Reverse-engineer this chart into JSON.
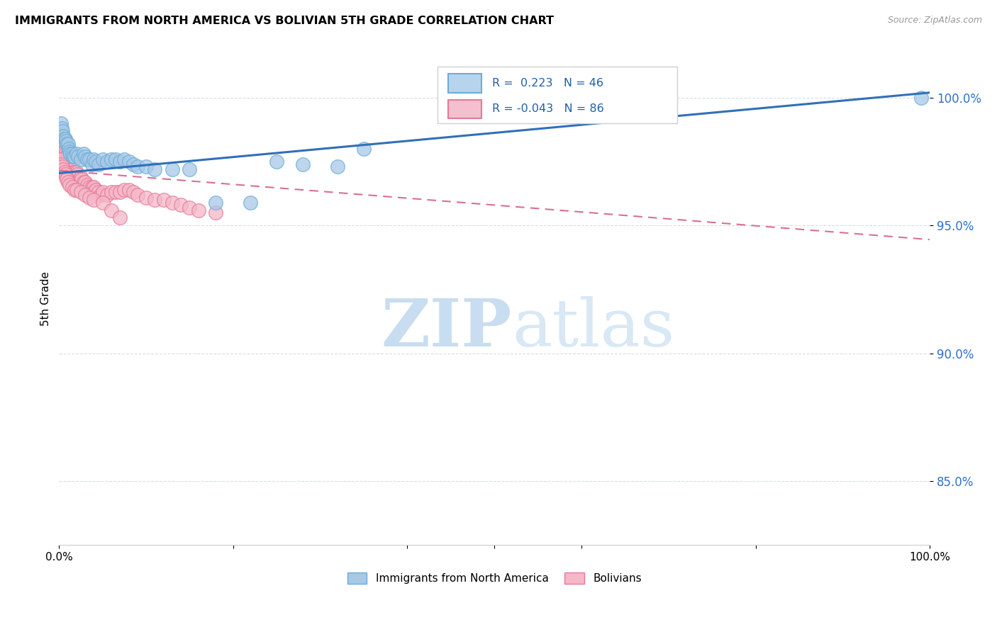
{
  "title": "IMMIGRANTS FROM NORTH AMERICA VS BOLIVIAN 5TH GRADE CORRELATION CHART",
  "source": "Source: ZipAtlas.com",
  "ylabel": "5th Grade",
  "ytick_values": [
    0.85,
    0.9,
    0.95,
    1.0
  ],
  "xlim": [
    0.0,
    1.0
  ],
  "ylim": [
    0.825,
    1.018
  ],
  "legend_blue_r": "0.223",
  "legend_blue_n": "46",
  "legend_pink_r": "-0.043",
  "legend_pink_n": "86",
  "legend_label_blue": "Immigrants from North America",
  "legend_label_pink": "Bolivians",
  "blue_color": "#a8c8e8",
  "blue_edge_color": "#6baed6",
  "pink_color": "#f4b8c8",
  "pink_edge_color": "#e87898",
  "blue_line_color": "#3070b8",
  "pink_line_color": "#d87090",
  "legend_blue_box": "#b8d4ec",
  "legend_pink_box": "#f4c0d0",
  "legend_text_color": "#2060a8",
  "ytick_color": "#3070c8",
  "watermark_zip_color": "#c8ddf0",
  "watermark_atlas_color": "#d8e8f4",
  "blue_line_y0": 0.9705,
  "blue_line_y1": 1.002,
  "pink_line_y0": 0.9715,
  "pink_line_y1": 0.9445,
  "blue_scatter_x": [
    0.002,
    0.003,
    0.004,
    0.005,
    0.006,
    0.007,
    0.008,
    0.009,
    0.01,
    0.011,
    0.012,
    0.013,
    0.015,
    0.016,
    0.018,
    0.02,
    0.022,
    0.025,
    0.028,
    0.03,
    0.032,
    0.035,
    0.038,
    0.04,
    0.042,
    0.045,
    0.05,
    0.055,
    0.06,
    0.065,
    0.07,
    0.075,
    0.08,
    0.085,
    0.09,
    0.1,
    0.11,
    0.13,
    0.15,
    0.18,
    0.22,
    0.25,
    0.28,
    0.32,
    0.35,
    0.99
  ],
  "blue_scatter_y": [
    0.99,
    0.988,
    0.987,
    0.985,
    0.984,
    0.984,
    0.983,
    0.982,
    0.982,
    0.98,
    0.979,
    0.978,
    0.978,
    0.977,
    0.977,
    0.978,
    0.977,
    0.976,
    0.978,
    0.977,
    0.976,
    0.976,
    0.974,
    0.976,
    0.975,
    0.974,
    0.976,
    0.975,
    0.976,
    0.976,
    0.975,
    0.976,
    0.975,
    0.974,
    0.973,
    0.973,
    0.972,
    0.972,
    0.972,
    0.959,
    0.959,
    0.975,
    0.974,
    0.973,
    0.98,
    1.0
  ],
  "pink_scatter_x": [
    0.002,
    0.002,
    0.002,
    0.003,
    0.003,
    0.004,
    0.004,
    0.005,
    0.005,
    0.005,
    0.006,
    0.006,
    0.007,
    0.007,
    0.008,
    0.008,
    0.009,
    0.009,
    0.01,
    0.01,
    0.011,
    0.012,
    0.012,
    0.013,
    0.013,
    0.014,
    0.015,
    0.015,
    0.016,
    0.017,
    0.018,
    0.019,
    0.02,
    0.02,
    0.021,
    0.022,
    0.023,
    0.025,
    0.026,
    0.028,
    0.03,
    0.032,
    0.035,
    0.038,
    0.04,
    0.04,
    0.042,
    0.045,
    0.048,
    0.05,
    0.055,
    0.06,
    0.065,
    0.07,
    0.075,
    0.08,
    0.085,
    0.09,
    0.1,
    0.11,
    0.12,
    0.13,
    0.14,
    0.15,
    0.16,
    0.18,
    0.002,
    0.003,
    0.004,
    0.005,
    0.006,
    0.007,
    0.008,
    0.009,
    0.01,
    0.012,
    0.015,
    0.018,
    0.02,
    0.025,
    0.03,
    0.035,
    0.04,
    0.05,
    0.06,
    0.07
  ],
  "pink_scatter_y": [
    0.984,
    0.982,
    0.98,
    0.982,
    0.98,
    0.981,
    0.979,
    0.981,
    0.979,
    0.977,
    0.979,
    0.977,
    0.978,
    0.976,
    0.977,
    0.975,
    0.976,
    0.974,
    0.976,
    0.974,
    0.975,
    0.975,
    0.973,
    0.974,
    0.972,
    0.973,
    0.973,
    0.971,
    0.972,
    0.971,
    0.971,
    0.97,
    0.971,
    0.969,
    0.97,
    0.969,
    0.968,
    0.969,
    0.968,
    0.967,
    0.967,
    0.966,
    0.965,
    0.965,
    0.965,
    0.963,
    0.964,
    0.963,
    0.962,
    0.963,
    0.962,
    0.963,
    0.963,
    0.963,
    0.964,
    0.964,
    0.963,
    0.962,
    0.961,
    0.96,
    0.96,
    0.959,
    0.958,
    0.957,
    0.956,
    0.955,
    0.976,
    0.974,
    0.973,
    0.972,
    0.971,
    0.97,
    0.969,
    0.968,
    0.967,
    0.966,
    0.965,
    0.964,
    0.964,
    0.963,
    0.962,
    0.961,
    0.96,
    0.959,
    0.956,
    0.953
  ]
}
